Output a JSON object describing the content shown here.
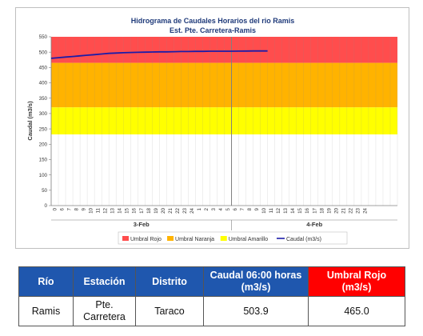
{
  "chart_data": {
    "type": "line",
    "title": "Hidrograma de Caudales Horarios del rio Ramis",
    "subtitle": "Est. Pte. Carretera-Ramis",
    "ylabel": "Caudal  (m3/s)",
    "xlabel": "",
    "ylim": [
      0,
      550
    ],
    "yticks": [
      0,
      50,
      100,
      150,
      200,
      250,
      300,
      350,
      400,
      450,
      500,
      550
    ],
    "xlim": [
      0,
      48
    ],
    "x_tick_labels": [
      "0",
      "6",
      "7",
      "8",
      "9",
      "10",
      "11",
      "12",
      "13",
      "14",
      "15",
      "16",
      "17",
      "18",
      "19",
      "20",
      "21",
      "22",
      "23",
      "24",
      "1",
      "2",
      "3",
      "4",
      "5",
      "6",
      "7",
      "8",
      "9",
      "10",
      "11",
      "12",
      "13",
      "14",
      "15",
      "16",
      "17",
      "18",
      "19",
      "20",
      "21",
      "22",
      "23",
      "24"
    ],
    "day_labels": [
      {
        "label": "3-Feb",
        "x_start": 0,
        "x_end": 25
      },
      {
        "label": "4-Feb",
        "x_start": 25,
        "x_end": 48
      }
    ],
    "thresholds": [
      {
        "name": "Umbral Rojo",
        "from": 465,
        "to": 550,
        "color": "#ff4d4d"
      },
      {
        "name": "Umbral Naranja",
        "from": 320,
        "to": 465,
        "color": "#ffb300"
      },
      {
        "name": "Umbral Amarillo",
        "from": 232,
        "to": 320,
        "color": "#ffff00"
      }
    ],
    "series": [
      {
        "name": "Caudal (m3/s)",
        "color": "#1c1ca8",
        "x": [
          0,
          1,
          2,
          3,
          4,
          5,
          6,
          7,
          8,
          9,
          10,
          11,
          12,
          13,
          14,
          15,
          16,
          17,
          18,
          19,
          20,
          21,
          22,
          23,
          24,
          25,
          26,
          27,
          28,
          29,
          30
        ],
        "values": [
          480,
          482,
          484,
          486,
          488,
          490,
          492,
          494,
          496,
          497,
          498,
          499,
          499.5,
          500,
          500.5,
          501,
          501,
          501.5,
          502,
          502,
          502.5,
          502.5,
          503,
          503,
          503,
          503.2,
          503.4,
          503.6,
          503.8,
          503.9,
          503.9
        ]
      }
    ],
    "legend_position": "bottom",
    "grid": true
  },
  "table": {
    "headers": {
      "rio": "Río",
      "estacion": "Estación",
      "distrito": "Distrito",
      "caudal_line1": "Caudal 06:00 horas",
      "caudal_line2": "(m3/s)",
      "umbral_line1": "Umbral Rojo",
      "umbral_line2": "(m3/s)"
    },
    "row": {
      "rio": "Ramis",
      "estacion_line1": "Pte.",
      "estacion_line2": "Carretera",
      "distrito": "Taraco",
      "caudal": "503.9",
      "umbral": "465.0"
    }
  }
}
